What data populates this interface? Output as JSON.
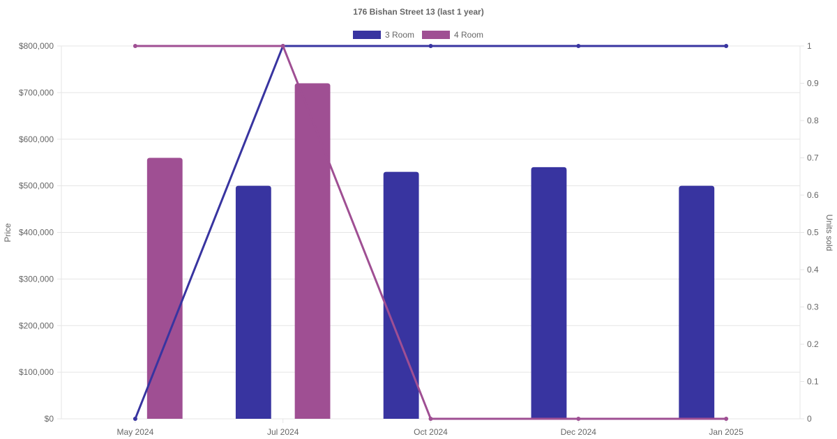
{
  "chart_data": {
    "type": "bar",
    "title": "176 Bishan Street 13 (last 1 year)",
    "categories": [
      "May 2024",
      "Jul 2024",
      "Oct 2024",
      "Dec 2024",
      "Jan 2025"
    ],
    "legend_position": "top",
    "grid": true,
    "y_left": {
      "label": "Price",
      "ylim": [
        0,
        800000
      ],
      "ticks": [
        "$0",
        "$100,000",
        "$200,000",
        "$300,000",
        "$400,000",
        "$500,000",
        "$600,000",
        "$700,000",
        "$800,000"
      ]
    },
    "y_right": {
      "label": "Units sold",
      "ylim": [
        0,
        1
      ],
      "ticks": [
        "0",
        "0.1",
        "0.2",
        "0.3",
        "0.4",
        "0.5",
        "0.6",
        "0.7",
        "0.8",
        "0.9",
        "1"
      ]
    },
    "series": [
      {
        "name": "3 Room",
        "color": "#3834a0",
        "bar_values": [
          null,
          500000,
          530000,
          540000,
          500000
        ],
        "line_values": [
          0,
          1,
          1,
          1,
          1
        ]
      },
      {
        "name": "4 Room",
        "color": "#9f4f93",
        "bar_values": [
          560000,
          720000,
          null,
          null,
          null
        ],
        "line_values": [
          1,
          1,
          0,
          0,
          0
        ]
      }
    ]
  }
}
